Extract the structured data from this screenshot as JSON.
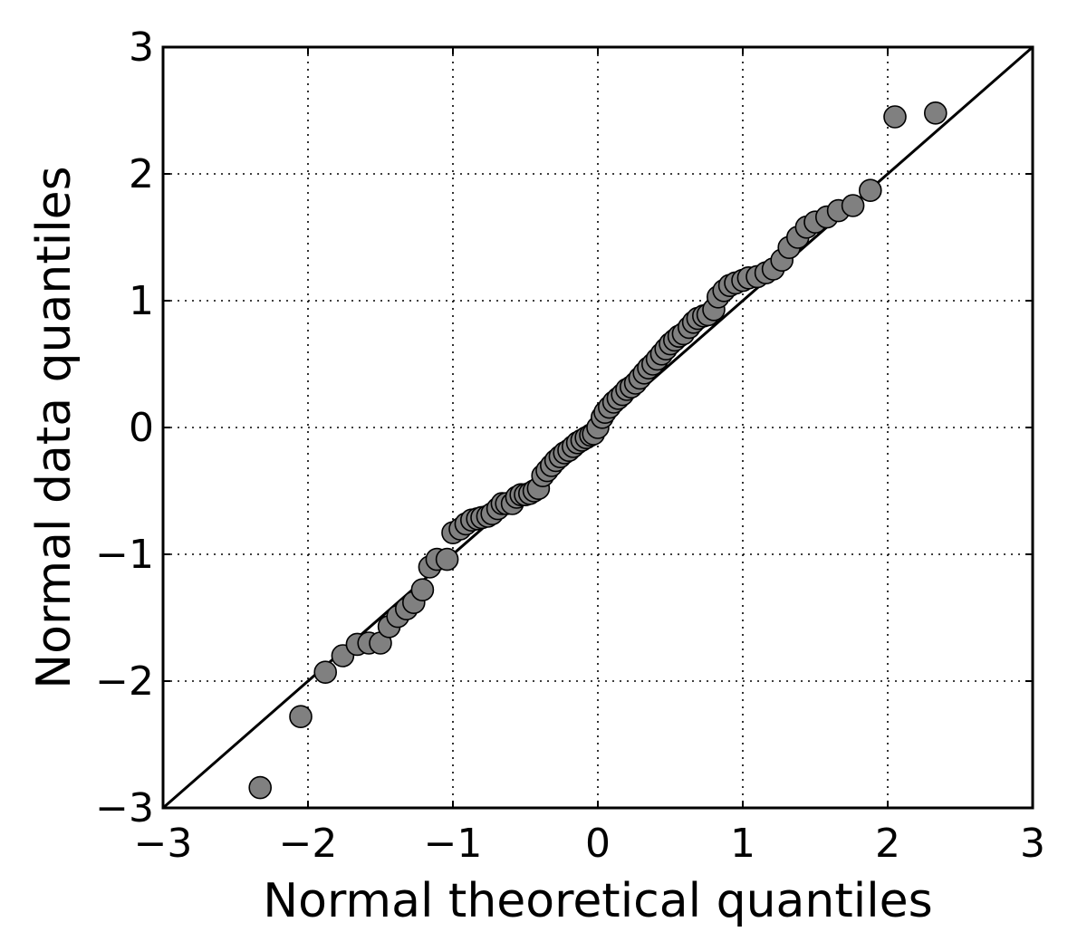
{
  "chart_data": {
    "type": "scatter",
    "title": "",
    "xlabel": "Normal theoretical quantiles",
    "ylabel": "Normal data quantiles",
    "xlim": [
      -3,
      3
    ],
    "ylim": [
      -3,
      3
    ],
    "xticks": [
      -3,
      -2,
      -1,
      0,
      1,
      2,
      3
    ],
    "yticks": [
      -3,
      -2,
      -1,
      0,
      1,
      2,
      3
    ],
    "xtick_labels": [
      "−3",
      "−2",
      "−1",
      "0",
      "1",
      "2",
      "3"
    ],
    "ytick_labels": [
      "−3",
      "−2",
      "−1",
      "0",
      "1",
      "2",
      "3"
    ],
    "grid": true,
    "point_color": "#808080",
    "reference_line": {
      "x": [
        -3,
        3
      ],
      "y": [
        -3,
        3
      ]
    },
    "points": [
      [
        -2.33,
        -2.84
      ],
      [
        -2.05,
        -2.28
      ],
      [
        -1.88,
        -1.93
      ],
      [
        -1.76,
        -1.8
      ],
      [
        -1.66,
        -1.71
      ],
      [
        -1.58,
        -1.7
      ],
      [
        -1.5,
        -1.7
      ],
      [
        -1.44,
        -1.57
      ],
      [
        -1.38,
        -1.49
      ],
      [
        -1.32,
        -1.43
      ],
      [
        -1.27,
        -1.38
      ],
      [
        -1.21,
        -1.28
      ],
      [
        -1.16,
        -1.1
      ],
      [
        -1.11,
        -1.04
      ],
      [
        -1.04,
        -1.04
      ],
      [
        -1.0,
        -0.83
      ],
      [
        -0.95,
        -0.8
      ],
      [
        -0.91,
        -0.76
      ],
      [
        -0.87,
        -0.73
      ],
      [
        -0.83,
        -0.72
      ],
      [
        -0.8,
        -0.71
      ],
      [
        -0.76,
        -0.7
      ],
      [
        -0.73,
        -0.68
      ],
      [
        -0.69,
        -0.64
      ],
      [
        -0.66,
        -0.6
      ],
      [
        -0.63,
        -0.6
      ],
      [
        -0.59,
        -0.6
      ],
      [
        -0.56,
        -0.55
      ],
      [
        -0.53,
        -0.53
      ],
      [
        -0.5,
        -0.53
      ],
      [
        -0.47,
        -0.52
      ],
      [
        -0.44,
        -0.5
      ],
      [
        -0.41,
        -0.48
      ],
      [
        -0.38,
        -0.38
      ],
      [
        -0.35,
        -0.34
      ],
      [
        -0.32,
        -0.3
      ],
      [
        -0.29,
        -0.26
      ],
      [
        -0.26,
        -0.23
      ],
      [
        -0.23,
        -0.2
      ],
      [
        -0.2,
        -0.18
      ],
      [
        -0.17,
        -0.15
      ],
      [
        -0.14,
        -0.12
      ],
      [
        -0.11,
        -0.1
      ],
      [
        -0.08,
        -0.08
      ],
      [
        -0.05,
        -0.06
      ],
      [
        -0.03,
        -0.05
      ],
      [
        0.0,
        0.0
      ],
      [
        0.03,
        0.08
      ],
      [
        0.05,
        0.12
      ],
      [
        0.08,
        0.16
      ],
      [
        0.11,
        0.2
      ],
      [
        0.14,
        0.23
      ],
      [
        0.17,
        0.26
      ],
      [
        0.2,
        0.3
      ],
      [
        0.23,
        0.32
      ],
      [
        0.26,
        0.35
      ],
      [
        0.29,
        0.39
      ],
      [
        0.32,
        0.43
      ],
      [
        0.35,
        0.47
      ],
      [
        0.38,
        0.5
      ],
      [
        0.41,
        0.54
      ],
      [
        0.44,
        0.58
      ],
      [
        0.47,
        0.62
      ],
      [
        0.5,
        0.66
      ],
      [
        0.53,
        0.69
      ],
      [
        0.56,
        0.72
      ],
      [
        0.59,
        0.74
      ],
      [
        0.63,
        0.79
      ],
      [
        0.66,
        0.83
      ],
      [
        0.69,
        0.86
      ],
      [
        0.73,
        0.88
      ],
      [
        0.76,
        0.89
      ],
      [
        0.8,
        0.93
      ],
      [
        0.83,
        1.03
      ],
      [
        0.87,
        1.08
      ],
      [
        0.91,
        1.12
      ],
      [
        0.95,
        1.14
      ],
      [
        1.0,
        1.16
      ],
      [
        1.04,
        1.18
      ],
      [
        1.1,
        1.19
      ],
      [
        1.16,
        1.22
      ],
      [
        1.21,
        1.25
      ],
      [
        1.27,
        1.32
      ],
      [
        1.32,
        1.42
      ],
      [
        1.38,
        1.5
      ],
      [
        1.44,
        1.58
      ],
      [
        1.5,
        1.62
      ],
      [
        1.58,
        1.66
      ],
      [
        1.66,
        1.71
      ],
      [
        1.76,
        1.75
      ],
      [
        1.88,
        1.87
      ],
      [
        2.05,
        2.45
      ],
      [
        2.33,
        2.48
      ]
    ]
  }
}
